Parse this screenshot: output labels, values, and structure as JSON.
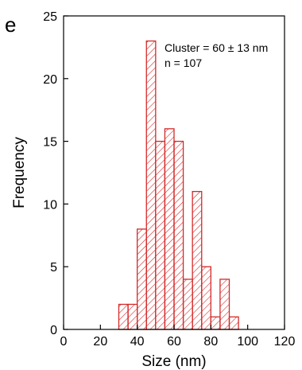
{
  "panel_label": "e",
  "colors": {
    "bar_stroke": "#d42a2a",
    "hatch": "#d42a2a",
    "axis": "#000000",
    "background": "#ffffff"
  },
  "chart_data": {
    "type": "bar",
    "subtype": "histogram",
    "title": "",
    "xlabel": "Size (nm)",
    "ylabel": "Frequency",
    "xlim": [
      0,
      120
    ],
    "ylim": [
      0,
      25
    ],
    "xticks": [
      0,
      20,
      40,
      60,
      80,
      100,
      120
    ],
    "yticks": [
      0,
      5,
      10,
      15,
      20,
      25
    ],
    "bin_width": 5,
    "bins": [
      {
        "x0": 30,
        "x1": 35,
        "value": 2
      },
      {
        "x0": 35,
        "x1": 40,
        "value": 2
      },
      {
        "x0": 40,
        "x1": 45,
        "value": 8
      },
      {
        "x0": 45,
        "x1": 50,
        "value": 23
      },
      {
        "x0": 50,
        "x1": 55,
        "value": 15
      },
      {
        "x0": 55,
        "x1": 60,
        "value": 16
      },
      {
        "x0": 60,
        "x1": 65,
        "value": 15
      },
      {
        "x0": 65,
        "x1": 70,
        "value": 4
      },
      {
        "x0": 70,
        "x1": 75,
        "value": 11
      },
      {
        "x0": 75,
        "x1": 80,
        "value": 5
      },
      {
        "x0": 80,
        "x1": 85,
        "value": 1
      },
      {
        "x0": 85,
        "x1": 90,
        "value": 4
      },
      {
        "x0": 90,
        "x1": 95,
        "value": 1
      }
    ],
    "annotations": [
      "Cluster = 60 ± 13 nm",
      "n = 107"
    ],
    "grid": false,
    "fill": "hatched"
  }
}
